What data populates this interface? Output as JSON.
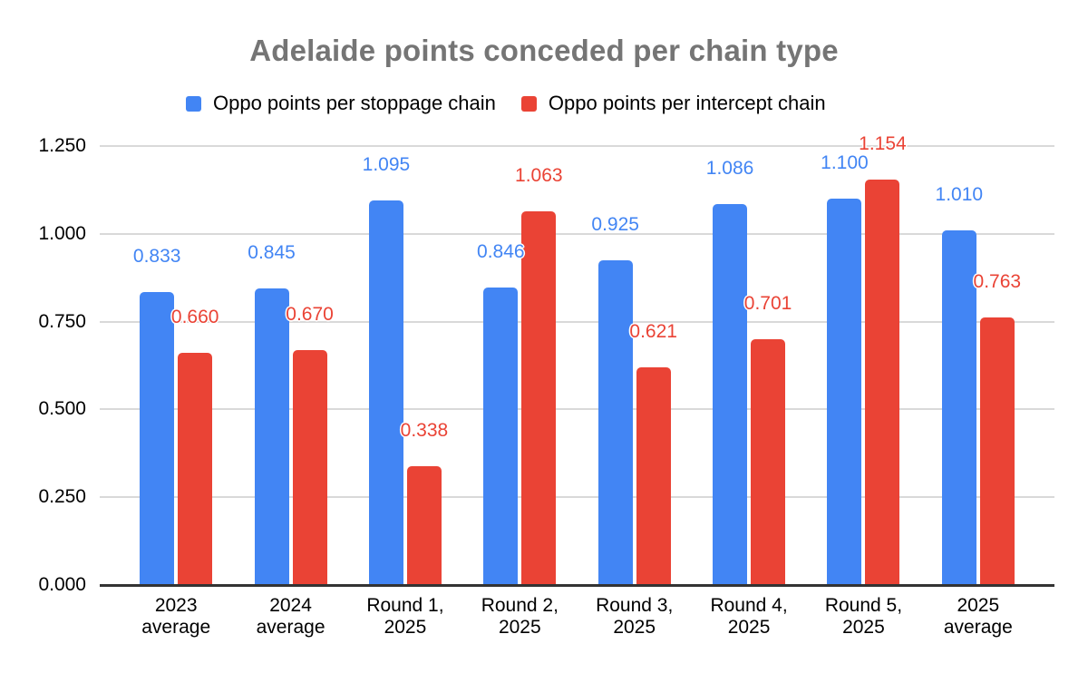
{
  "title": "Adelaide points conceded per chain type",
  "chart_data": {
    "type": "bar",
    "title": "Adelaide points conceded per chain type",
    "categories": [
      "2023\naverage",
      "2024\naverage",
      "Round 1,\n2025",
      "Round 2,\n2025",
      "Round 3,\n2025",
      "Round 4,\n2025",
      "Round 5,\n2025",
      "2025\naverage"
    ],
    "series": [
      {
        "key": "stoppage",
        "name": "Oppo points per stoppage chain",
        "color": "#4285F4",
        "values": [
          0.833,
          0.845,
          1.095,
          0.846,
          0.925,
          1.086,
          1.1,
          1.01
        ]
      },
      {
        "key": "intercept",
        "name": "Oppo points per intercept chain",
        "color": "#EA4335",
        "values": [
          0.66,
          0.67,
          0.338,
          1.063,
          0.621,
          0.701,
          1.154,
          0.763
        ]
      }
    ],
    "y_axis": {
      "min": 0,
      "max": 1.25,
      "step": 0.25,
      "tick_labels": [
        "0.000",
        "0.250",
        "0.500",
        "0.750",
        "1.000",
        "1.250"
      ]
    },
    "xlabel": "",
    "ylabel": "",
    "grid": true,
    "legend_position": "top",
    "data_labels": true,
    "value_decimals": 3
  }
}
